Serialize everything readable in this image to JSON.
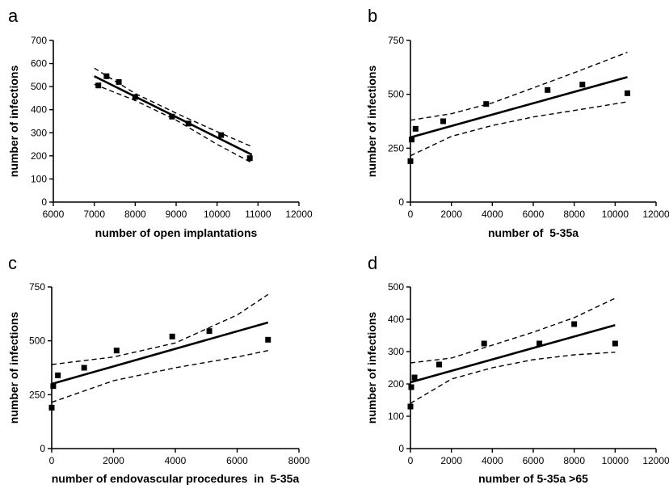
{
  "figure": {
    "panels": [
      "a",
      "b",
      "c",
      "d"
    ]
  },
  "chart_data": [
    {
      "panel": "a",
      "type": "scatter",
      "xlabel": "number of open implantations",
      "ylabel": "number of infections",
      "xlim": [
        6000,
        12000
      ],
      "ylim": [
        0,
        700
      ],
      "xticks": [
        6000,
        7000,
        8000,
        9000,
        10000,
        11000,
        12000
      ],
      "yticks": [
        0,
        100,
        200,
        300,
        400,
        500,
        600,
        700
      ],
      "points": [
        [
          7100,
          505
        ],
        [
          7300,
          545
        ],
        [
          7600,
          520
        ],
        [
          8000,
          455
        ],
        [
          8900,
          370
        ],
        [
          9300,
          340
        ],
        [
          10100,
          290
        ],
        [
          10800,
          190
        ]
      ],
      "fit": {
        "x": [
          7000,
          10850
        ],
        "y": [
          545,
          205
        ]
      },
      "ci_upper": [
        [
          7000,
          580
        ],
        [
          8000,
          470
        ],
        [
          9000,
          385
        ],
        [
          10000,
          305
        ],
        [
          10850,
          240
        ]
      ],
      "ci_lower": [
        [
          7000,
          510
        ],
        [
          8000,
          440
        ],
        [
          9000,
          355
        ],
        [
          10000,
          250
        ],
        [
          10850,
          170
        ]
      ]
    },
    {
      "panel": "b",
      "type": "scatter",
      "xlabel": "number of  5-35a",
      "ylabel": "number of infections",
      "xlim": [
        0,
        12000
      ],
      "ylim": [
        0,
        750
      ],
      "xticks": [
        0,
        2000,
        4000,
        6000,
        8000,
        10000,
        12000
      ],
      "yticks": [
        0,
        250,
        500,
        750
      ],
      "points": [
        [
          0,
          190
        ],
        [
          60,
          290
        ],
        [
          250,
          340
        ],
        [
          1600,
          375
        ],
        [
          3700,
          455
        ],
        [
          6700,
          520
        ],
        [
          8400,
          545
        ],
        [
          10600,
          505
        ]
      ],
      "fit": {
        "x": [
          0,
          10600
        ],
        "y": [
          300,
          580
        ]
      },
      "ci_upper": [
        [
          0,
          380
        ],
        [
          2000,
          410
        ],
        [
          4000,
          460
        ],
        [
          6000,
          530
        ],
        [
          8000,
          600
        ],
        [
          10600,
          695
        ]
      ],
      "ci_lower": [
        [
          0,
          215
        ],
        [
          2000,
          305
        ],
        [
          4000,
          355
        ],
        [
          6000,
          395
        ],
        [
          8000,
          425
        ],
        [
          10600,
          465
        ]
      ]
    },
    {
      "panel": "c",
      "type": "scatter",
      "xlabel": "number of endovascular procedures  in  5-35a",
      "ylabel": "number of infections",
      "xlim": [
        0,
        8000
      ],
      "ylim": [
        0,
        750
      ],
      "xticks": [
        0,
        2000,
        4000,
        6000,
        8000
      ],
      "yticks": [
        0,
        250,
        500,
        750
      ],
      "points": [
        [
          0,
          190
        ],
        [
          50,
          290
        ],
        [
          200,
          340
        ],
        [
          1050,
          375
        ],
        [
          2100,
          455
        ],
        [
          3900,
          520
        ],
        [
          5100,
          545
        ],
        [
          7000,
          505
        ]
      ],
      "fit": {
        "x": [
          0,
          7000
        ],
        "y": [
          300,
          585
        ]
      },
      "ci_upper": [
        [
          0,
          390
        ],
        [
          2000,
          425
        ],
        [
          4000,
          490
        ],
        [
          6000,
          620
        ],
        [
          7000,
          715
        ]
      ],
      "ci_lower": [
        [
          0,
          215
        ],
        [
          2000,
          315
        ],
        [
          4000,
          375
        ],
        [
          6000,
          425
        ],
        [
          7000,
          455
        ]
      ]
    },
    {
      "panel": "d",
      "type": "scatter",
      "xlabel": "number of 5-35a >65",
      "ylabel": "number of infections",
      "xlim": [
        0,
        12000
      ],
      "ylim": [
        0,
        500
      ],
      "xticks": [
        0,
        2000,
        4000,
        6000,
        8000,
        10000,
        12000
      ],
      "yticks": [
        0,
        100,
        200,
        300,
        400,
        500
      ],
      "points": [
        [
          0,
          130
        ],
        [
          40,
          190
        ],
        [
          200,
          220
        ],
        [
          1400,
          260
        ],
        [
          3600,
          325
        ],
        [
          6300,
          325
        ],
        [
          8000,
          385
        ],
        [
          10000,
          325
        ]
      ],
      "fit": {
        "x": [
          0,
          10000
        ],
        "y": [
          205,
          382
        ]
      },
      "ci_upper": [
        [
          0,
          265
        ],
        [
          2000,
          280
        ],
        [
          4000,
          320
        ],
        [
          6000,
          360
        ],
        [
          8000,
          405
        ],
        [
          10000,
          465
        ]
      ],
      "ci_lower": [
        [
          0,
          140
        ],
        [
          2000,
          215
        ],
        [
          4000,
          250
        ],
        [
          6000,
          275
        ],
        [
          8000,
          290
        ],
        [
          10000,
          298
        ]
      ]
    }
  ]
}
